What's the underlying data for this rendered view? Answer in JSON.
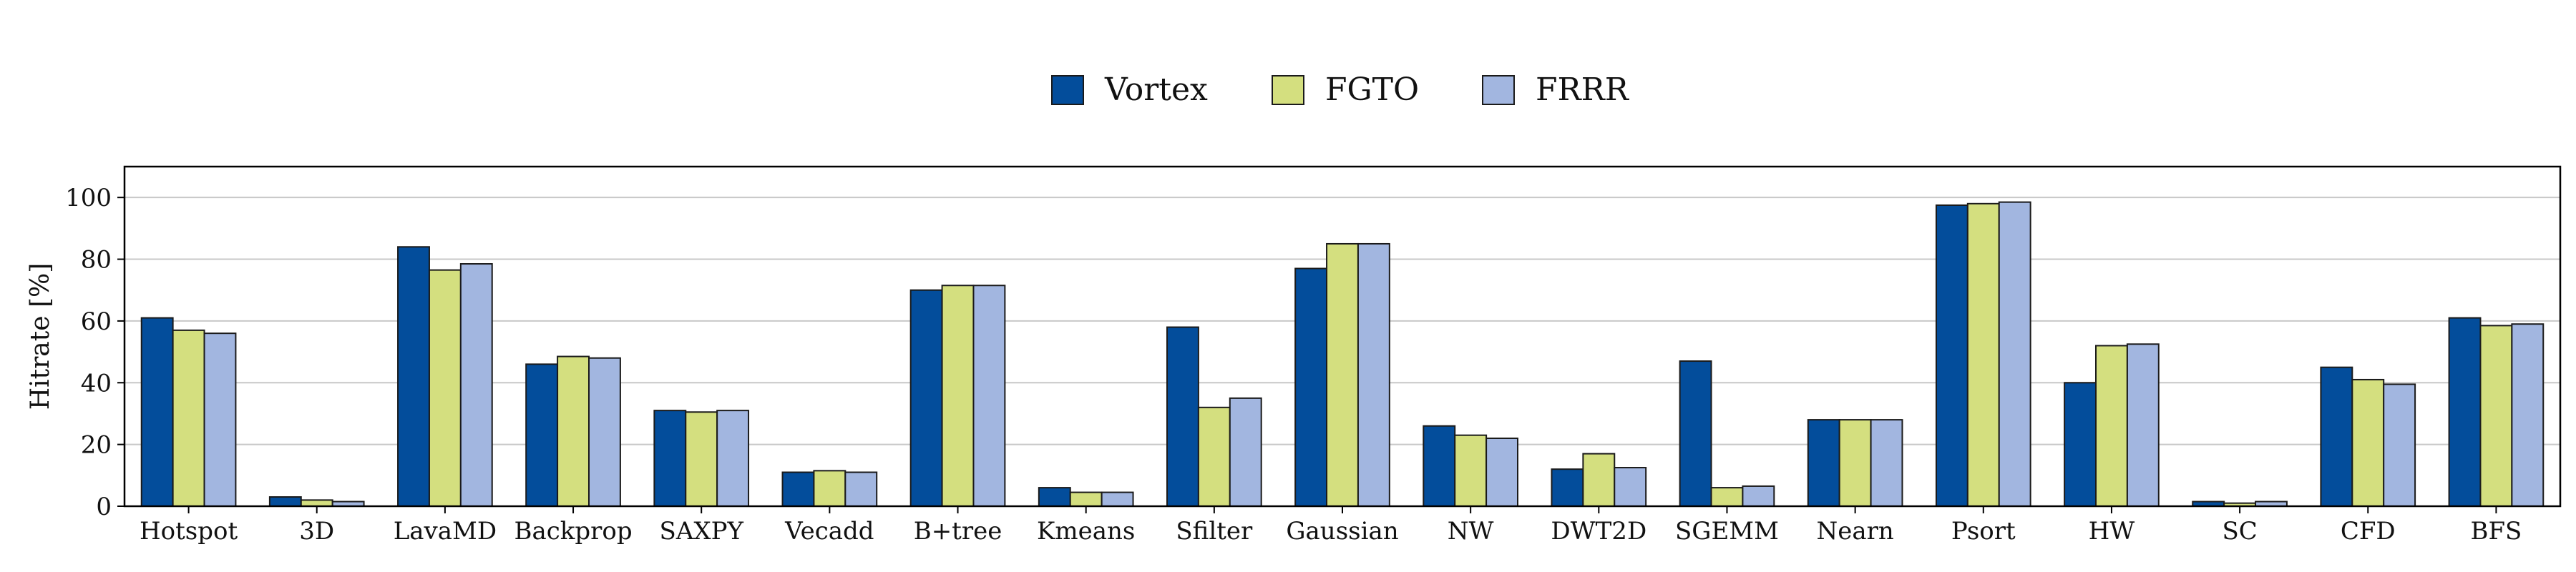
{
  "chart_data": {
    "type": "bar",
    "title": "",
    "xlabel": "",
    "ylabel": "Hitrate [%]",
    "ylim": [
      0,
      110
    ],
    "yticks": [
      0,
      20,
      40,
      60,
      80,
      100
    ],
    "grid": "horizontal",
    "legend_position": "top-center",
    "categories": [
      "Hotspot",
      "3D",
      "LavaMD",
      "Backprop",
      "SAXPY",
      "Vecadd",
      "B+tree",
      "Kmeans",
      "Sfilter",
      "Gaussian",
      "NW",
      "DWT2D",
      "SGEMM",
      "Nearn",
      "Psort",
      "HW",
      "SC",
      "CFD",
      "BFS"
    ],
    "series": [
      {
        "name": "Vortex",
        "color": "#034D9B",
        "values": [
          61,
          3,
          84,
          46,
          31,
          11,
          70,
          6,
          58,
          77,
          26,
          12,
          47,
          28,
          97.5,
          40,
          1.5,
          45,
          61
        ]
      },
      {
        "name": "FGTO",
        "color": "#D4DF7F",
        "values": [
          57,
          2,
          76.5,
          48.5,
          30.5,
          11.5,
          71.5,
          4.5,
          32,
          85,
          23,
          17,
          6,
          28,
          98,
          52,
          1,
          41,
          58.5
        ]
      },
      {
        "name": "FRRR",
        "color": "#A2B6E0",
        "values": [
          56,
          1.5,
          78.5,
          48,
          31,
          11,
          71.5,
          4.5,
          35,
          85,
          22,
          12.5,
          6.5,
          28,
          98.5,
          52.5,
          1.5,
          39.5,
          59
        ]
      }
    ]
  }
}
